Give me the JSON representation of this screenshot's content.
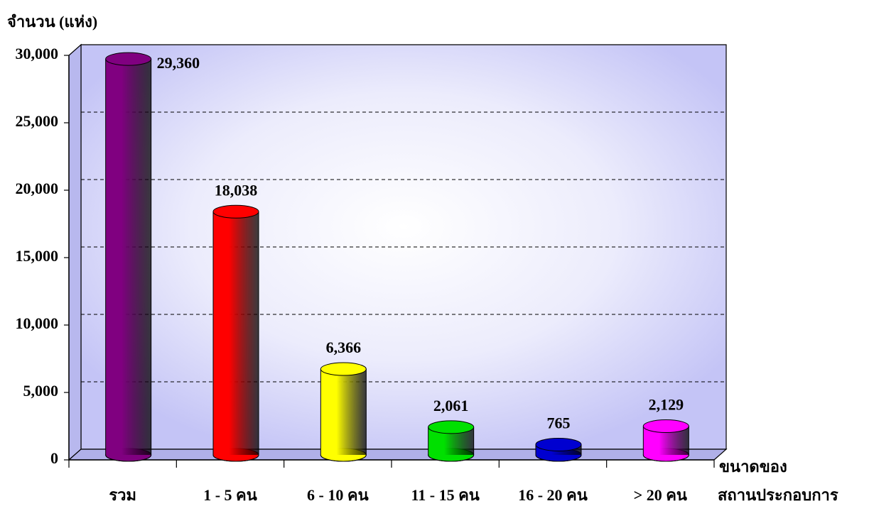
{
  "chart_data": {
    "type": "bar",
    "y_axis_label": "จำนวน (แห่ง)",
    "x_axis_label": [
      "ขนาดของ",
      "สถานประกอบการ"
    ],
    "categories": [
      "รวม",
      "1 - 5 คน",
      "6 - 10 คน",
      "11 - 15 คน",
      "16 - 20 คน",
      "> 20 คน"
    ],
    "values": [
      29360,
      18038,
      6366,
      2061,
      765,
      2129
    ],
    "value_labels": [
      "29,360",
      "18,038",
      "6,366",
      "2,061",
      "765",
      "2,129"
    ],
    "colors": [
      "#800080",
      "#ff0000",
      "#ffff00",
      "#00e000",
      "#0000d0",
      "#ff00ff"
    ],
    "ylim": [
      0,
      30000
    ],
    "yticks": [
      0,
      {
        "value": 5000,
        "label": "5,000"
      },
      {
        "value": 10000,
        "label": "10,000"
      },
      {
        "value": 15000,
        "label": "15,000"
      },
      {
        "value": 20000,
        "label": "20,000"
      },
      {
        "value": 25000,
        "label": "25,000"
      },
      {
        "value": 30000,
        "label": "30,000"
      }
    ],
    "grid": true
  }
}
